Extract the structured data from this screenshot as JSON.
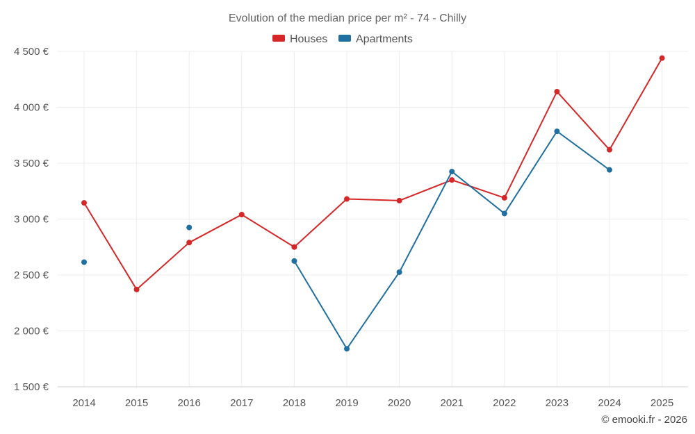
{
  "chart_data": {
    "type": "line",
    "title": "Evolution of the median price per m² - 74 - Chilly",
    "categories": [
      "2014",
      "2015",
      "2016",
      "2017",
      "2018",
      "2019",
      "2020",
      "2021",
      "2022",
      "2023",
      "2024",
      "2025"
    ],
    "series": [
      {
        "name": "Houses",
        "color": "#d62728",
        "values": [
          3145,
          2370,
          2790,
          3040,
          2750,
          3180,
          3165,
          3350,
          3190,
          4140,
          3620,
          4440
        ]
      },
      {
        "name": "Apartments",
        "color": "#1f6fa0",
        "values": [
          2615,
          null,
          2925,
          null,
          2625,
          1840,
          2525,
          3425,
          3050,
          3785,
          3440,
          null
        ]
      }
    ],
    "y_ticks": [
      1500,
      2000,
      2500,
      3000,
      3500,
      4000,
      4500
    ],
    "y_tick_labels": [
      "1 500 €",
      "2 000 €",
      "2 500 €",
      "3 000 €",
      "3 500 €",
      "4 000 €",
      "4 500 €"
    ],
    "ylim": [
      1500,
      4600
    ],
    "xlabel": "",
    "ylabel": "",
    "grid": true,
    "legend_position": "top-center",
    "credit": "© emooki.fr - 2026"
  }
}
